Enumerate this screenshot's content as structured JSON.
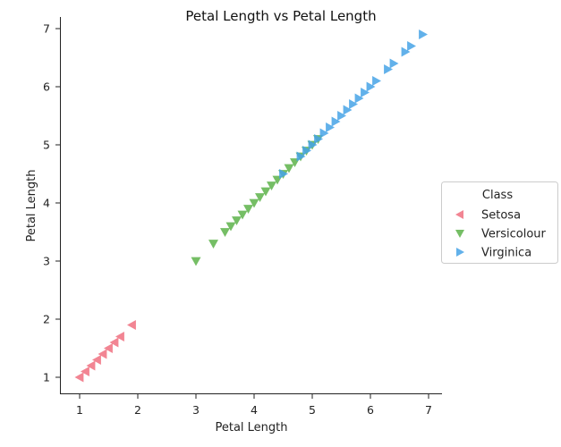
{
  "chart_data": {
    "type": "scatter",
    "title": "Petal Length vs Petal Length",
    "xlabel": "Petal Length",
    "ylabel": "Petal Length",
    "xlim": [
      0.7,
      7.2
    ],
    "ylim": [
      0.7,
      7.2
    ],
    "xticks": [
      "1",
      "2",
      "3",
      "4",
      "5",
      "6",
      "7"
    ],
    "yticks": [
      "1",
      "2",
      "3",
      "4",
      "5",
      "6",
      "7"
    ],
    "grid": false,
    "legend": {
      "title": "Class",
      "placement": "center-right outside"
    },
    "series": [
      {
        "name": "Setosa",
        "color": "#f07080",
        "marker": "triangle-left",
        "values": [
          1.0,
          1.1,
          1.2,
          1.3,
          1.4,
          1.5,
          1.6,
          1.7,
          1.9
        ]
      },
      {
        "name": "Versicolour",
        "color": "#5db34a",
        "marker": "triangle-down",
        "values": [
          3.0,
          3.3,
          3.5,
          3.6,
          3.7,
          3.8,
          3.9,
          4.0,
          4.1,
          4.2,
          4.3,
          4.4,
          4.5,
          4.6,
          4.7,
          4.8,
          4.9,
          5.0,
          5.1
        ]
      },
      {
        "name": "Virginica",
        "color": "#47a3e6",
        "marker": "triangle-right",
        "values": [
          4.5,
          4.8,
          4.9,
          5.0,
          5.1,
          5.2,
          5.3,
          5.4,
          5.5,
          5.6,
          5.7,
          5.8,
          5.9,
          6.0,
          6.1,
          6.3,
          6.4,
          6.6,
          6.7,
          6.9
        ]
      }
    ]
  }
}
